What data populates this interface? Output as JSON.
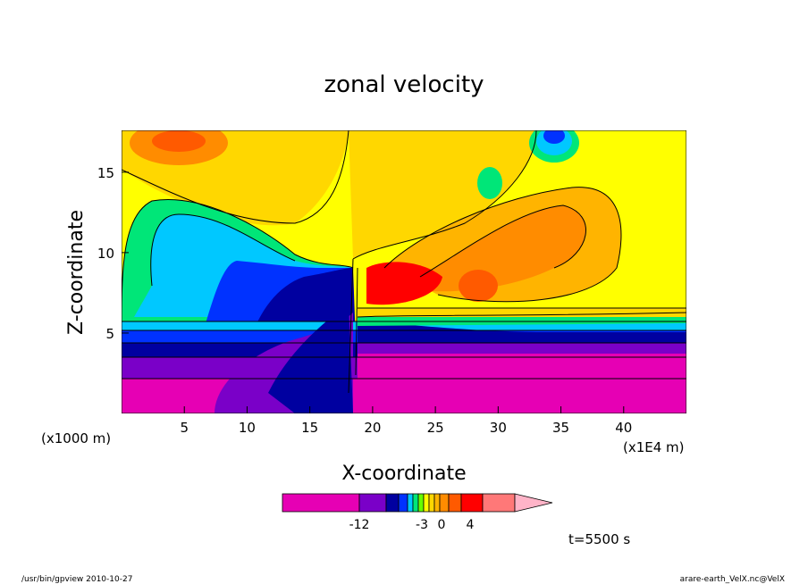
{
  "chart_data": {
    "type": "heatmap",
    "title": "zonal velocity",
    "xlabel": "X-coordinate",
    "ylabel": "Z-coordinate",
    "x_unit_label": "(x1000 m)",
    "x_scale_label": "(x1E4 m)",
    "x_ticks": [
      "5",
      "10",
      "15",
      "20",
      "25",
      "30",
      "35",
      "40"
    ],
    "x_tick_values": [
      5,
      10,
      15,
      20,
      25,
      30,
      35,
      40
    ],
    "y_ticks": [
      "5",
      "10",
      "15"
    ],
    "y_tick_values": [
      5,
      10,
      15
    ],
    "xlim": [
      0,
      45
    ],
    "ylim": [
      0,
      17.6
    ],
    "colorbar": {
      "tick_labels": [
        "-12",
        "-3",
        "0",
        "4"
      ],
      "colors": [
        "#e600b4",
        "#7a00c8",
        "#0000a0",
        "#0032ff",
        "#00c8ff",
        "#00e678",
        "#66ff00",
        "#ffff00",
        "#ffd700",
        "#ffb400",
        "#ff8c00",
        "#ff5a00",
        "#ff0000",
        "#ff7878",
        "#ffb4c8"
      ]
    },
    "time_label": "t=5500 s"
  },
  "footer": {
    "left": "/usr/bin/gpview  2010-10-27",
    "right": "arare-earth_VelX.nc@VelX"
  }
}
